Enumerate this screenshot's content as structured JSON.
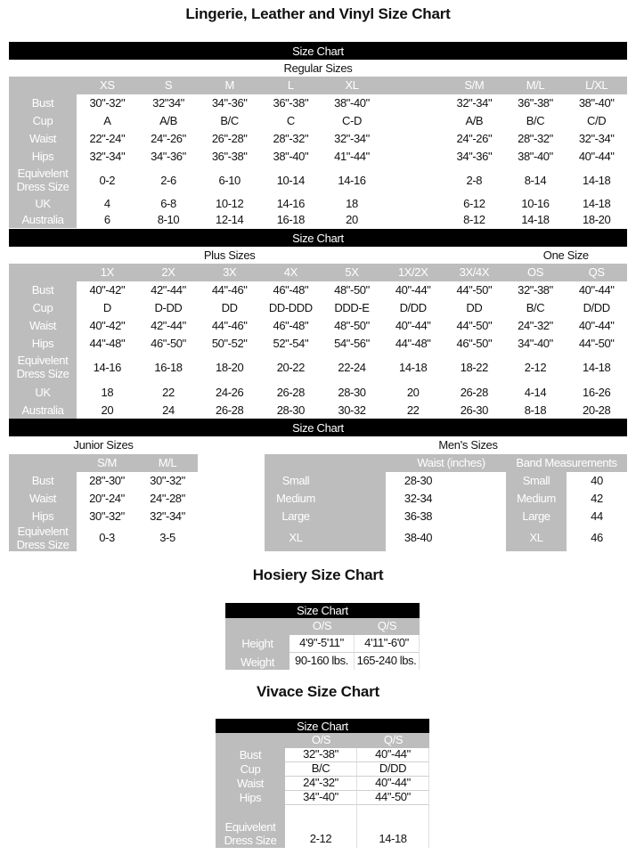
{
  "title": "Lingerie, Leather and Vinyl Size Chart",
  "regular": {
    "bar": "Size Chart",
    "heading": "Regular Sizes",
    "columns": [
      "XS",
      "S",
      "M",
      "L",
      "XL",
      "S/M",
      "M/L",
      "L/XL"
    ],
    "rows": [
      {
        "label": "Bust",
        "values": [
          "30\"-32\"",
          "32\"34\"",
          "34\"-36\"",
          "36\"-38\"",
          "38\"-40\"",
          "32\"-34\"",
          "36\"-38\"",
          "38\"-40\""
        ]
      },
      {
        "label": "Cup",
        "values": [
          "A",
          "A/B",
          "B/C",
          "C",
          "C-D",
          "A/B",
          "B/C",
          "C/D"
        ]
      },
      {
        "label": "Waist",
        "values": [
          "22\"-24\"",
          "24\"-26\"",
          "26\"-28\"",
          "28\"-32\"",
          "32\"-34\"",
          "24\"-26\"",
          "28\"-32\"",
          "32\"-34\""
        ]
      },
      {
        "label": "Hips",
        "values": [
          "32\"-34\"",
          "34\"-36\"",
          "36\"-38\"",
          "38\"-40\"",
          "41\"-44\"",
          "34\"-36\"",
          "38\"-40\"",
          "40\"-44\""
        ]
      },
      {
        "label": "Equivelent\nDress Size",
        "values": [
          "0-2",
          "2-6",
          "6-10",
          "10-14",
          "14-16",
          "2-8",
          "8-14",
          "14-18"
        ]
      },
      {
        "label": "UK",
        "values": [
          "4",
          "6-8",
          "10-12",
          "14-16",
          "18",
          "6-12",
          "10-16",
          "14-18"
        ]
      },
      {
        "label": "Australia",
        "values": [
          "6",
          "8-10",
          "12-14",
          "16-18",
          "20",
          "8-12",
          "14-18",
          "18-20"
        ]
      }
    ]
  },
  "plus": {
    "bar": "Size Chart",
    "heading": "Plus Sizes",
    "one_size_heading": "One Size",
    "columns": [
      "1X",
      "2X",
      "3X",
      "4X",
      "5X",
      "1X/2X",
      "3X/4X",
      "OS",
      "QS"
    ],
    "rows": [
      {
        "label": "Bust",
        "values": [
          "40\"-42\"",
          "42\"-44\"",
          "44\"-46\"",
          "46\"-48\"",
          "48\"-50\"",
          "40\"-44\"",
          "44\"-50\"",
          "32\"-38\"",
          "40\"-44\""
        ]
      },
      {
        "label": "Cup",
        "values": [
          "D",
          "D-DD",
          "DD",
          "DD-DDD",
          "DDD-E",
          "D/DD",
          "DD",
          "B/C",
          "D/DD"
        ]
      },
      {
        "label": "Waist",
        "values": [
          "40\"-42\"",
          "42\"-44\"",
          "44\"-46\"",
          "46\"-48\"",
          "48\"-50\"",
          "40\"-44\"",
          "44\"-50\"",
          "24\"-32\"",
          "40\"-44\""
        ]
      },
      {
        "label": "Hips",
        "values": [
          "44\"-48\"",
          "46\"-50\"",
          "50\"-52\"",
          "52\"-54\"",
          "54\"-56\"",
          "44\"-48\"",
          "46\"-50\"",
          "34\"-40\"",
          "44\"-50\""
        ]
      },
      {
        "label": "Equivelent\nDress Size",
        "values": [
          "14-16",
          "16-18",
          "18-20",
          "20-22",
          "22-24",
          "14-18",
          "18-22",
          "2-12",
          "14-18"
        ]
      },
      {
        "label": "UK",
        "values": [
          "18",
          "22",
          "24-26",
          "26-28",
          "28-30",
          "20",
          "26-28",
          "4-14",
          "16-26"
        ]
      },
      {
        "label": "Australia",
        "values": [
          "20",
          "24",
          "26-28",
          "28-30",
          "30-32",
          "22",
          "26-30",
          "8-18",
          "20-28"
        ]
      }
    ]
  },
  "lower": {
    "bar": "Size Chart",
    "junior": {
      "heading": "Junior Sizes",
      "columns": [
        "S/M",
        "M/L"
      ],
      "rows": [
        {
          "label": "Bust",
          "values": [
            "28\"-30\"",
            "30\"-32\""
          ]
        },
        {
          "label": "Waist",
          "values": [
            "20\"-24\"",
            "24\"-28\""
          ]
        },
        {
          "label": "Hips",
          "values": [
            "30\"-32\"",
            "32\"-34\""
          ]
        },
        {
          "label": "Equivelent\nDress Size",
          "values": [
            "0-3",
            "3-5"
          ]
        }
      ]
    },
    "mens": {
      "heading": "Men's Sizes",
      "waist_header": "Waist (inches)",
      "band_header": "Band Measurements",
      "rows": [
        {
          "label": "Small",
          "waist": "28-30",
          "band_label": "Small",
          "band": "40"
        },
        {
          "label": "Medium",
          "waist": "32-34",
          "band_label": "Medium",
          "band": "42"
        },
        {
          "label": "Large",
          "waist": "36-38",
          "band_label": "Large",
          "band": "44"
        },
        {
          "label": "XL",
          "waist": "38-40",
          "band_label": "XL",
          "band": "46"
        }
      ]
    }
  },
  "hosiery": {
    "title": "Hosiery Size Chart",
    "bar": "Size Chart",
    "columns": [
      "O/S",
      "Q/S"
    ],
    "rows": [
      {
        "label": "Height",
        "values": [
          "4'9\"-5'11\"",
          "4'11\"-6'0\""
        ]
      },
      {
        "label": "Weight",
        "values": [
          "90-160 lbs.",
          "165-240 lbs."
        ]
      }
    ]
  },
  "vivace": {
    "title": "Vivace Size Chart",
    "bar": "Size Chart",
    "columns": [
      "O/S",
      "Q/S"
    ],
    "rows": [
      {
        "label": "Bust",
        "values": [
          "32\"-38\"",
          "40\"-44\""
        ]
      },
      {
        "label": "Cup",
        "values": [
          "B/C",
          "D/DD"
        ]
      },
      {
        "label": "Waist",
        "values": [
          "24\"-32\"",
          "40\"-44\""
        ]
      },
      {
        "label": "Hips",
        "values": [
          "34\"-40\"",
          "44\"-50\""
        ]
      },
      {
        "label": "Equivelent\nDress Size",
        "values": [
          "2-12",
          "14-18"
        ]
      }
    ]
  },
  "colors": {
    "bar": "#000000",
    "header_gray": "#bdbdbd",
    "label_text": "#ffffff"
  }
}
